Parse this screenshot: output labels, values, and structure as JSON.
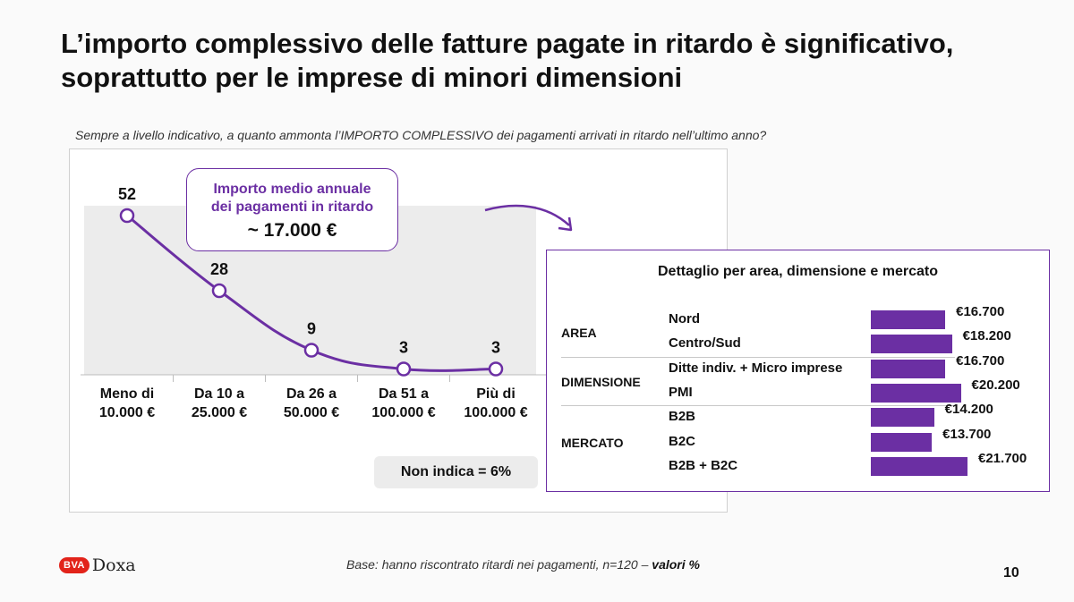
{
  "title": {
    "line1": "L’importo complessivo delle fatture pagate in ritardo è significativo,",
    "line2": "soprattutto per le imprese di minori dimensioni"
  },
  "question": "Sempre a livello indicativo, a quanto ammonta l’IMPORTO COMPLESSIVO dei pagamenti arrivati in ritardo nell’ultimo anno?",
  "callout": {
    "line1": "Importo medio annuale",
    "line2": "dei pagamenti in ritardo",
    "value": "~ 17.000 €"
  },
  "non_indica": "Non indica = 6%",
  "chart_data": [
    {
      "type": "line",
      "categories": [
        [
          "Meno di",
          "10.000 €"
        ],
        [
          "Da 10 a",
          "25.000 €"
        ],
        [
          "Da 26 a",
          "50.000 €"
        ],
        [
          "Da 51 a",
          "100.000 €"
        ],
        [
          "Più di",
          "100.000 €"
        ]
      ],
      "values": [
        52,
        28,
        9,
        3,
        3
      ],
      "ylim": [
        0,
        60
      ],
      "color": "#6b2fa3"
    },
    {
      "type": "bar",
      "title": "Dettaglio per area, dimensione e mercato",
      "groups": [
        {
          "name": "AREA",
          "rows": [
            {
              "label": "Nord",
              "value": 16700,
              "display": "€16.700"
            },
            {
              "label": "Centro/Sud",
              "value": 18200,
              "display": "€18.200"
            }
          ]
        },
        {
          "name": "DIMENSIONE",
          "rows": [
            {
              "label": "Ditte indiv. + Micro imprese",
              "value": 16700,
              "display": "€16.700"
            },
            {
              "label": "PMI",
              "value": 20200,
              "display": "€20.200"
            }
          ]
        },
        {
          "name": "MERCATO",
          "rows": [
            {
              "label": "B2B",
              "value": 14200,
              "display": "€14.200"
            },
            {
              "label": "B2C",
              "value": 13700,
              "display": "€13.700"
            },
            {
              "label": "B2B + B2C",
              "value": 21700,
              "display": "€21.700"
            }
          ]
        }
      ],
      "color": "#6b2fa3"
    }
  ],
  "footer": {
    "logo_bva": "BVA",
    "logo_doxa": "Doxa",
    "base_text": "Base: hanno riscontrato ritardi nei pagamenti, n=120 – ",
    "base_emph": "valori %",
    "page_number": "10"
  }
}
